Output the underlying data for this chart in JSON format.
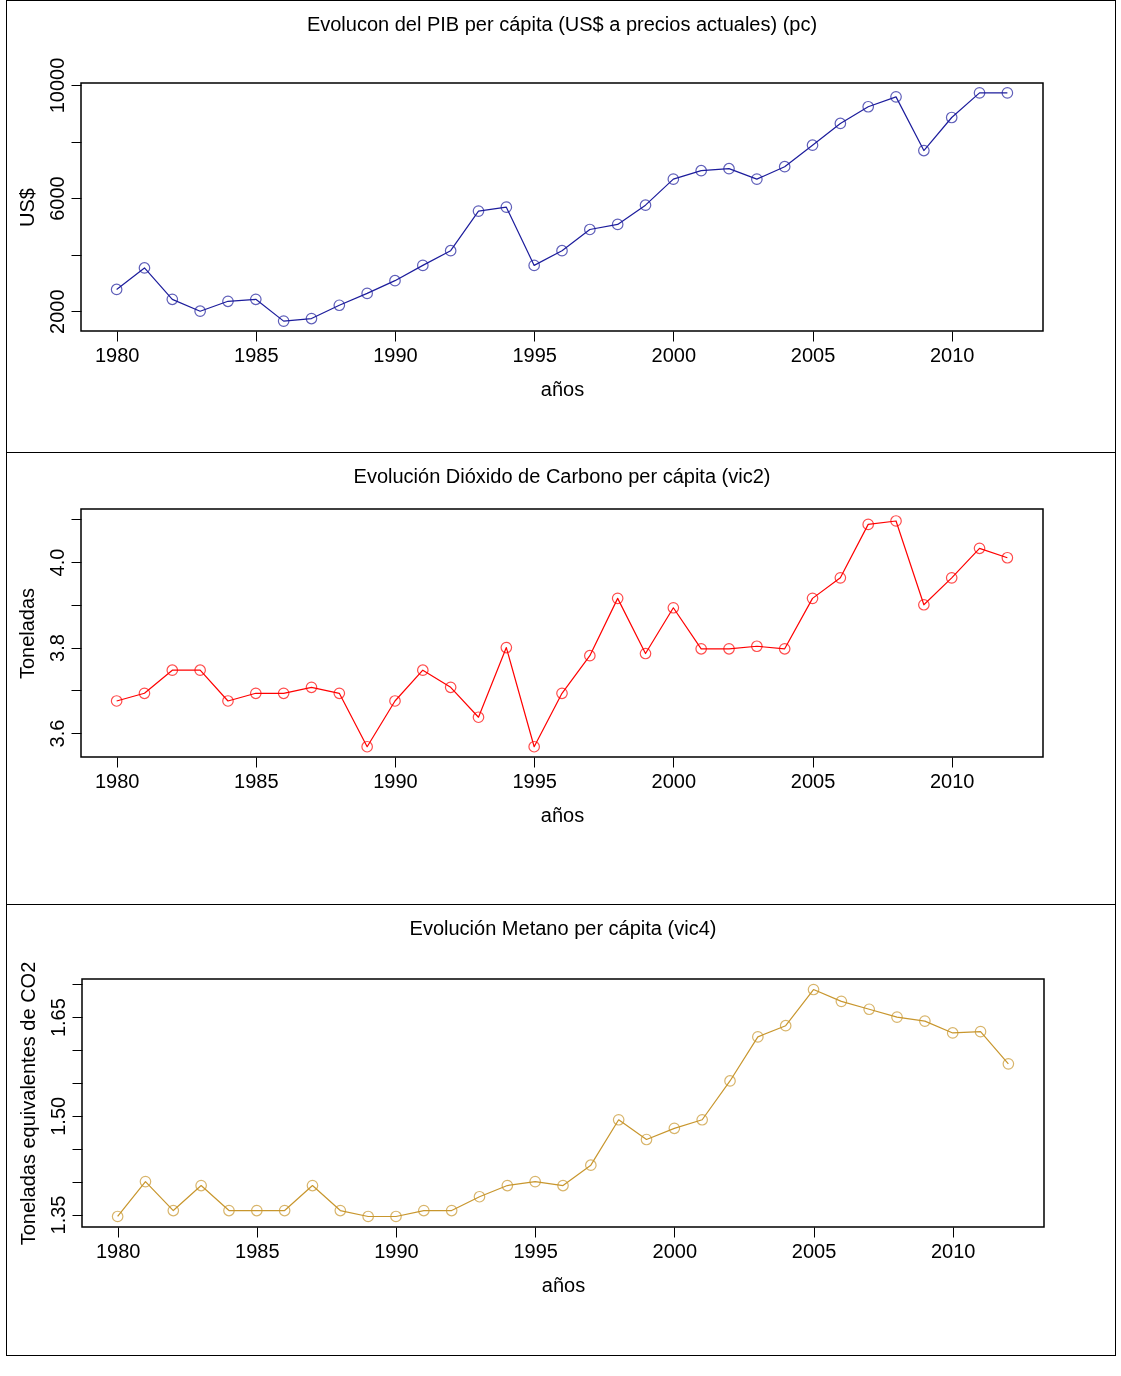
{
  "chart_data": [
    {
      "type": "line",
      "title": "Evolucon del PIB per cápita (US$ a precios actuales) (pc)",
      "xlabel": "años",
      "ylabel": "US$",
      "marker": "circle",
      "x": [
        1980,
        1981,
        1982,
        1983,
        1984,
        1985,
        1986,
        1987,
        1988,
        1989,
        1990,
        1991,
        1992,
        1993,
        1994,
        1995,
        1996,
        1997,
        1998,
        1999,
        2000,
        2001,
        2002,
        2003,
        2004,
        2005,
        2006,
        2007,
        2008,
        2009,
        2010,
        2011,
        2012
      ],
      "series": [
        {
          "color": "#1c1c9c",
          "values": [
            2770,
            3530,
            2420,
            2000,
            2350,
            2420,
            1650,
            1740,
            2210,
            2630,
            3080,
            3620,
            4140,
            5540,
            5680,
            3620,
            4140,
            4890,
            5070,
            5750,
            6670,
            6970,
            7040,
            6670,
            7110,
            7870,
            8640,
            9230,
            9580,
            7680,
            8850,
            9720,
            9720
          ]
        }
      ],
      "xlim": [
        1978.72,
        2013.28
      ],
      "xticks": [
        1980,
        1985,
        1990,
        1995,
        2000,
        2005,
        2010
      ],
      "ylim": [
        1300,
        10070
      ],
      "yticks": [
        2000,
        {
          "value": 4000,
          "label": null
        },
        6000,
        {
          "value": 8000,
          "label": null
        },
        10000
      ]
    },
    {
      "type": "line",
      "title": "Evolución Dióxido de Carbono per cápita (vic2)",
      "xlabel": "años",
      "ylabel": "Toneladas",
      "marker": "circle",
      "x": [
        1980,
        1981,
        1982,
        1983,
        1984,
        1985,
        1986,
        1987,
        1988,
        1989,
        1990,
        1991,
        1992,
        1993,
        1994,
        1995,
        1996,
        1997,
        1998,
        1999,
        2000,
        2001,
        2002,
        2003,
        2004,
        2005,
        2006,
        2007,
        2008,
        2009,
        2010,
        2011,
        2012
      ],
      "series": [
        {
          "color": "#ff0000",
          "values": [
            3.675,
            3.693,
            3.747,
            3.747,
            3.675,
            3.693,
            3.693,
            3.707,
            3.693,
            3.568,
            3.675,
            3.747,
            3.707,
            3.637,
            3.8,
            3.568,
            3.693,
            3.781,
            3.915,
            3.786,
            3.893,
            3.797,
            3.797,
            3.803,
            3.797,
            3.915,
            3.963,
            4.088,
            4.096,
            3.9,
            3.963,
            4.032,
            4.01
          ]
        }
      ],
      "xlim": [
        1978.72,
        2013.28
      ],
      "xticks": [
        1980,
        1985,
        1990,
        1995,
        2000,
        2005,
        2010
      ],
      "ylim": [
        3.544,
        4.124
      ],
      "yticks": [
        {
          "value": 3.6,
          "label": "3.6"
        },
        {
          "value": 3.7,
          "label": null
        },
        {
          "value": 3.8,
          "label": "3.8"
        },
        {
          "value": 3.9,
          "label": null
        },
        {
          "value": 4.0,
          "label": "4.0"
        },
        {
          "value": 4.1,
          "label": null
        }
      ]
    },
    {
      "type": "line",
      "title": "Evolución Metano per cápita (vic4)",
      "xlabel": "años",
      "ylabel": "Toneladas equivalentes de CO2",
      "marker": "circle",
      "x": [
        1980,
        1981,
        1982,
        1983,
        1984,
        1985,
        1986,
        1987,
        1988,
        1989,
        1990,
        1991,
        1992,
        1993,
        1994,
        1995,
        1996,
        1997,
        1998,
        1999,
        2000,
        2001,
        2002,
        2003,
        2004,
        2005,
        2006,
        2007,
        2008,
        2009,
        2010,
        2011,
        2012
      ],
      "series": [
        {
          "color": "#c8962d",
          "values": [
            1.347,
            1.4,
            1.356,
            1.394,
            1.356,
            1.356,
            1.356,
            1.394,
            1.356,
            1.347,
            1.347,
            1.356,
            1.356,
            1.377,
            1.394,
            1.4,
            1.394,
            1.425,
            1.494,
            1.464,
            1.481,
            1.494,
            1.553,
            1.62,
            1.637,
            1.692,
            1.674,
            1.662,
            1.65,
            1.644,
            1.626,
            1.628,
            1.579
          ]
        }
      ],
      "xlim": [
        1978.72,
        2013.28
      ],
      "xticks": [
        1980,
        1985,
        1990,
        1995,
        2000,
        2005,
        2010
      ],
      "ylim": [
        1.331,
        1.708
      ],
      "yticks": [
        {
          "value": 1.35,
          "label": "1.35"
        },
        {
          "value": 1.4,
          "label": null
        },
        {
          "value": 1.45,
          "label": null
        },
        {
          "value": 1.5,
          "label": "1.50"
        },
        {
          "value": 1.55,
          "label": null
        },
        {
          "value": 1.6,
          "label": null
        },
        {
          "value": 1.65,
          "label": "1.65"
        },
        {
          "value": 1.7,
          "label": null
        }
      ]
    }
  ]
}
